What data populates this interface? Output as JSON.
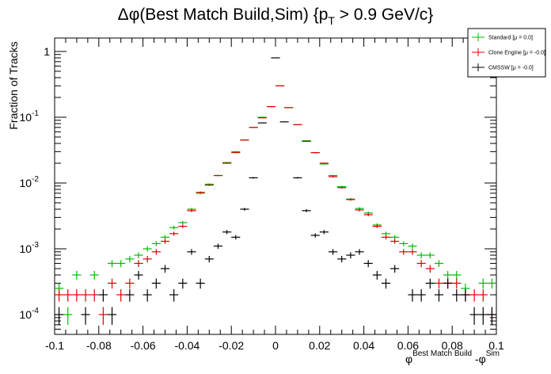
{
  "chart_data": {
    "type": "scatter",
    "title": {
      "prefix": "Δφ(Best Match Build,Sim) {p",
      "sub": "T",
      "suffix": " > 0.9 GeV/c}"
    },
    "ylabel": "Fraction of Tracks",
    "xlabel": {
      "phi1": "φ",
      "sup1": "Best Match Build",
      "mid": " -φ",
      "sup2": "Sim"
    },
    "xlim": [
      -0.1,
      0.1
    ],
    "ylim": [
      5e-05,
      1.6
    ],
    "yscale": "log",
    "grid": false,
    "legend_position": "top-right",
    "x_ticks": [
      "-0.1",
      "-0.08",
      "-0.06",
      "-0.04",
      "-0.02",
      "0",
      "0.02",
      "0.04",
      "0.06",
      "0.08",
      "0.1"
    ],
    "y_ticks": [
      {
        "base": "10",
        "exp": "-4"
      },
      {
        "base": "10",
        "exp": "-3"
      },
      {
        "base": "10",
        "exp": "-2"
      },
      {
        "base": "10",
        "exp": "-1"
      },
      {
        "base": "1",
        "exp": ""
      }
    ],
    "bin_half_width": 0.002,
    "series": [
      {
        "name": "Standard",
        "legend": "Standard  [μ = 0.0]",
        "color": "#00bb00",
        "points": [
          [
            -0.098,
            0.00025
          ],
          [
            -0.094,
            0.0001
          ],
          [
            -0.09,
            0.0004
          ],
          [
            -0.082,
            0.0004
          ],
          [
            -0.074,
            0.0006
          ],
          [
            -0.07,
            0.0006
          ],
          [
            -0.066,
            0.0007
          ],
          [
            -0.062,
            0.0008
          ],
          [
            -0.058,
            0.001
          ],
          [
            -0.054,
            0.0012
          ],
          [
            -0.05,
            0.0015
          ],
          [
            -0.046,
            0.0021
          ],
          [
            -0.042,
            0.0025
          ],
          [
            -0.038,
            0.004
          ],
          [
            -0.034,
            0.007
          ],
          [
            -0.03,
            0.0096
          ],
          [
            -0.026,
            0.013
          ],
          [
            -0.022,
            0.0205
          ],
          [
            -0.018,
            0.03
          ],
          [
            -0.014,
            0.045
          ],
          [
            -0.01,
            0.07
          ],
          [
            -0.006,
            0.1
          ],
          [
            -0.002,
            0.145
          ],
          [
            0.002,
            0.3
          ],
          [
            0.006,
            0.14
          ],
          [
            0.01,
            0.077
          ],
          [
            0.014,
            0.044
          ],
          [
            0.018,
            0.029
          ],
          [
            0.022,
            0.0195
          ],
          [
            0.026,
            0.013
          ],
          [
            0.03,
            0.0088
          ],
          [
            0.034,
            0.0057
          ],
          [
            0.038,
            0.0041
          ],
          [
            0.042,
            0.0035
          ],
          [
            0.046,
            0.0023
          ],
          [
            0.05,
            0.0017
          ],
          [
            0.054,
            0.0015
          ],
          [
            0.058,
            0.0012
          ],
          [
            0.062,
            0.0011
          ],
          [
            0.066,
            0.0008
          ],
          [
            0.07,
            0.0008
          ],
          [
            0.074,
            0.0006
          ],
          [
            0.078,
            0.0004
          ],
          [
            0.082,
            0.0004
          ],
          [
            0.086,
            0.00025
          ],
          [
            0.094,
            0.0003
          ],
          [
            0.098,
            0.0003
          ]
        ]
      },
      {
        "name": "Clone Engine",
        "legend": "Clone Engine  [μ = -0.0]",
        "color": "#dd0000",
        "points": [
          [
            -0.098,
            0.0002
          ],
          [
            -0.094,
            0.0002
          ],
          [
            -0.09,
            0.0002
          ],
          [
            -0.086,
            0.0002
          ],
          [
            -0.082,
            0.0002
          ],
          [
            -0.078,
            0.0001
          ],
          [
            -0.074,
            0.0003
          ],
          [
            -0.07,
            0.0002
          ],
          [
            -0.066,
            0.0003
          ],
          [
            -0.062,
            0.0006
          ],
          [
            -0.058,
            0.0007
          ],
          [
            -0.054,
            0.0009
          ],
          [
            -0.05,
            0.0013
          ],
          [
            -0.046,
            0.0017
          ],
          [
            -0.042,
            0.0022
          ],
          [
            -0.038,
            0.0038
          ],
          [
            -0.034,
            0.0072
          ],
          [
            -0.03,
            0.0093
          ],
          [
            -0.026,
            0.013
          ],
          [
            -0.022,
            0.02
          ],
          [
            -0.018,
            0.029
          ],
          [
            -0.014,
            0.045
          ],
          [
            -0.01,
            0.07
          ],
          [
            -0.006,
            0.098
          ],
          [
            -0.002,
            0.145
          ],
          [
            0.002,
            0.3
          ],
          [
            0.006,
            0.14
          ],
          [
            0.01,
            0.077
          ],
          [
            0.014,
            0.043
          ],
          [
            0.018,
            0.029
          ],
          [
            0.022,
            0.02
          ],
          [
            0.026,
            0.0125
          ],
          [
            0.03,
            0.0085
          ],
          [
            0.034,
            0.0056
          ],
          [
            0.038,
            0.0039
          ],
          [
            0.042,
            0.0033
          ],
          [
            0.046,
            0.0022
          ],
          [
            0.05,
            0.0015
          ],
          [
            0.054,
            0.0013
          ],
          [
            0.058,
            0.0009
          ],
          [
            0.062,
            0.0009
          ],
          [
            0.066,
            0.0006
          ],
          [
            0.07,
            0.0005
          ],
          [
            0.074,
            0.0003
          ],
          [
            0.078,
            0.0003
          ],
          [
            0.082,
            0.0003
          ],
          [
            0.086,
            0.0002
          ],
          [
            0.09,
            0.0002
          ],
          [
            0.094,
            0.0002
          ],
          [
            0.098,
            0.0001
          ]
        ]
      },
      {
        "name": "CMSSW",
        "legend": "CMSSW  [μ = -0.0]",
        "color": "#000000",
        "points": [
          [
            -0.098,
            0.0001
          ],
          [
            -0.086,
            0.0001
          ],
          [
            -0.078,
            0.0002
          ],
          [
            -0.074,
            0.0001
          ],
          [
            -0.066,
            0.0002
          ],
          [
            -0.062,
            0.0004
          ],
          [
            -0.058,
            0.0002
          ],
          [
            -0.054,
            0.0003
          ],
          [
            -0.05,
            0.0005
          ],
          [
            -0.046,
            0.0002
          ],
          [
            -0.042,
            0.0003
          ],
          [
            -0.038,
            0.0009
          ],
          [
            -0.034,
            0.0003
          ],
          [
            -0.03,
            0.0007
          ],
          [
            -0.026,
            0.0011
          ],
          [
            -0.022,
            0.0018
          ],
          [
            -0.018,
            0.0015
          ],
          [
            -0.014,
            0.004
          ],
          [
            -0.01,
            0.012
          ],
          [
            -0.006,
            0.082
          ],
          [
            0.0,
            0.8
          ],
          [
            0.004,
            0.085
          ],
          [
            0.01,
            0.012
          ],
          [
            0.014,
            0.0038
          ],
          [
            0.018,
            0.0016
          ],
          [
            0.022,
            0.0018
          ],
          [
            0.026,
            0.0009
          ],
          [
            0.03,
            0.0007
          ],
          [
            0.034,
            0.0008
          ],
          [
            0.038,
            0.0009
          ],
          [
            0.042,
            0.0006
          ],
          [
            0.046,
            0.0004
          ],
          [
            0.05,
            0.0003
          ],
          [
            0.054,
            0.0005
          ],
          [
            0.062,
            0.0002
          ],
          [
            0.066,
            0.0002
          ],
          [
            0.07,
            0.0003
          ],
          [
            0.074,
            0.0002
          ],
          [
            0.078,
            0.0003
          ],
          [
            0.082,
            0.0002
          ],
          [
            0.086,
            0.0002
          ],
          [
            0.09,
            0.0001
          ],
          [
            0.094,
            0.0001
          ],
          [
            0.098,
            0.0001
          ]
        ]
      }
    ]
  }
}
